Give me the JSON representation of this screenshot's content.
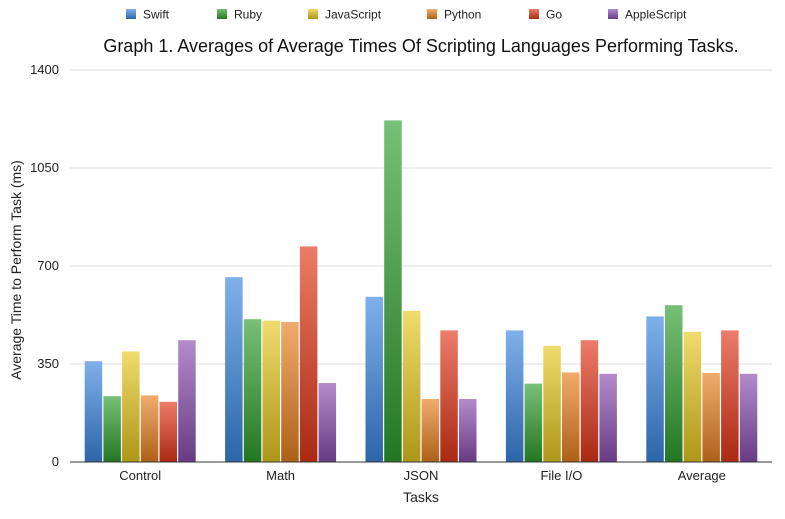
{
  "chart_data": {
    "type": "bar",
    "title": "Graph 1. Averages of Average Times Of Scripting Languages Performing Tasks.",
    "xlabel": "Tasks",
    "ylabel": "Average Time to Perform Task (ms)",
    "ylim": [
      0,
      1400
    ],
    "yticks": [
      "0",
      "350",
      "700",
      "1050",
      "1400"
    ],
    "grid": true,
    "legend_position": "top",
    "categories": [
      "Control",
      "Math",
      "JSON",
      "File I/O",
      "Average"
    ],
    "series": [
      {
        "name": "Swift",
        "color": "#3a86e0",
        "values": [
          360,
          660,
          590,
          470,
          520
        ]
      },
      {
        "name": "Ruby",
        "color": "#2e9e2e",
        "values": [
          235,
          510,
          1220,
          280,
          560
        ]
      },
      {
        "name": "JavaScript",
        "color": "#e8c81f",
        "values": [
          395,
          505,
          540,
          415,
          465
        ]
      },
      {
        "name": "Python",
        "color": "#e8801f",
        "values": [
          238,
          500,
          225,
          320,
          318
        ]
      },
      {
        "name": "Go",
        "color": "#e23618",
        "values": [
          215,
          770,
          470,
          435,
          470
        ]
      },
      {
        "name": "AppleScript",
        "color": "#8a4eb0",
        "values": [
          435,
          282,
          225,
          315,
          315
        ]
      }
    ]
  }
}
